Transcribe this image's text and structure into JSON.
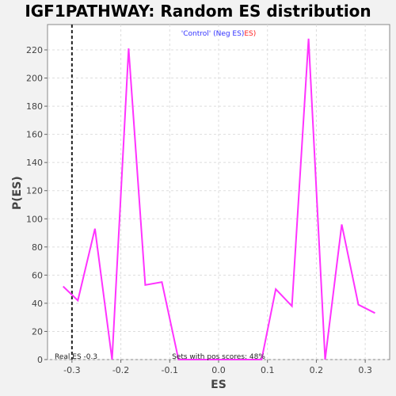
{
  "chart_data": {
    "type": "line",
    "title": "IGF1PATHWAY: Random ES distribution",
    "xlabel": "ES",
    "ylabel": "P(ES)",
    "xlim": [
      -0.35,
      0.35
    ],
    "ylim": [
      0,
      238
    ],
    "x_ticks": [
      -0.3,
      -0.2,
      -0.1,
      0.0,
      0.1,
      0.2,
      0.3
    ],
    "x_tick_labels": [
      "-0.3",
      "-0.2",
      "-0.1",
      "0.0",
      "0.1",
      "0.2",
      "0.3"
    ],
    "y_ticks": [
      0,
      20,
      40,
      60,
      80,
      100,
      120,
      140,
      160,
      180,
      200,
      220
    ],
    "y_tick_labels": [
      "0",
      "20",
      "40",
      "60",
      "80",
      "100",
      "120",
      "140",
      "160",
      "180",
      "200",
      "220"
    ],
    "grid": true,
    "series": [
      {
        "color": "#ff33ff",
        "x": [
          -0.318,
          -0.288,
          -0.253,
          -0.218,
          -0.184,
          -0.15,
          -0.116,
          -0.082,
          -0.048,
          -0.014,
          0.02,
          0.054,
          0.088,
          0.117,
          0.15,
          0.184,
          0.218,
          0.252,
          0.286,
          0.32
        ],
        "y": [
          52,
          42,
          93,
          0,
          221,
          53,
          55,
          0,
          0,
          0,
          0,
          0,
          0,
          50,
          38,
          228,
          0,
          96,
          39,
          33
        ]
      }
    ],
    "real_es": -0.3,
    "legend": {
      "part1": "'Control' (Neg ES)",
      "part1_color": "#3333ff",
      "part2": "ES)",
      "part2_color": "#ff2222"
    },
    "annotations": {
      "real_es_text": "Real ES -0.3",
      "pos_scores_text": "Sets with pos scores: 48%"
    }
  }
}
